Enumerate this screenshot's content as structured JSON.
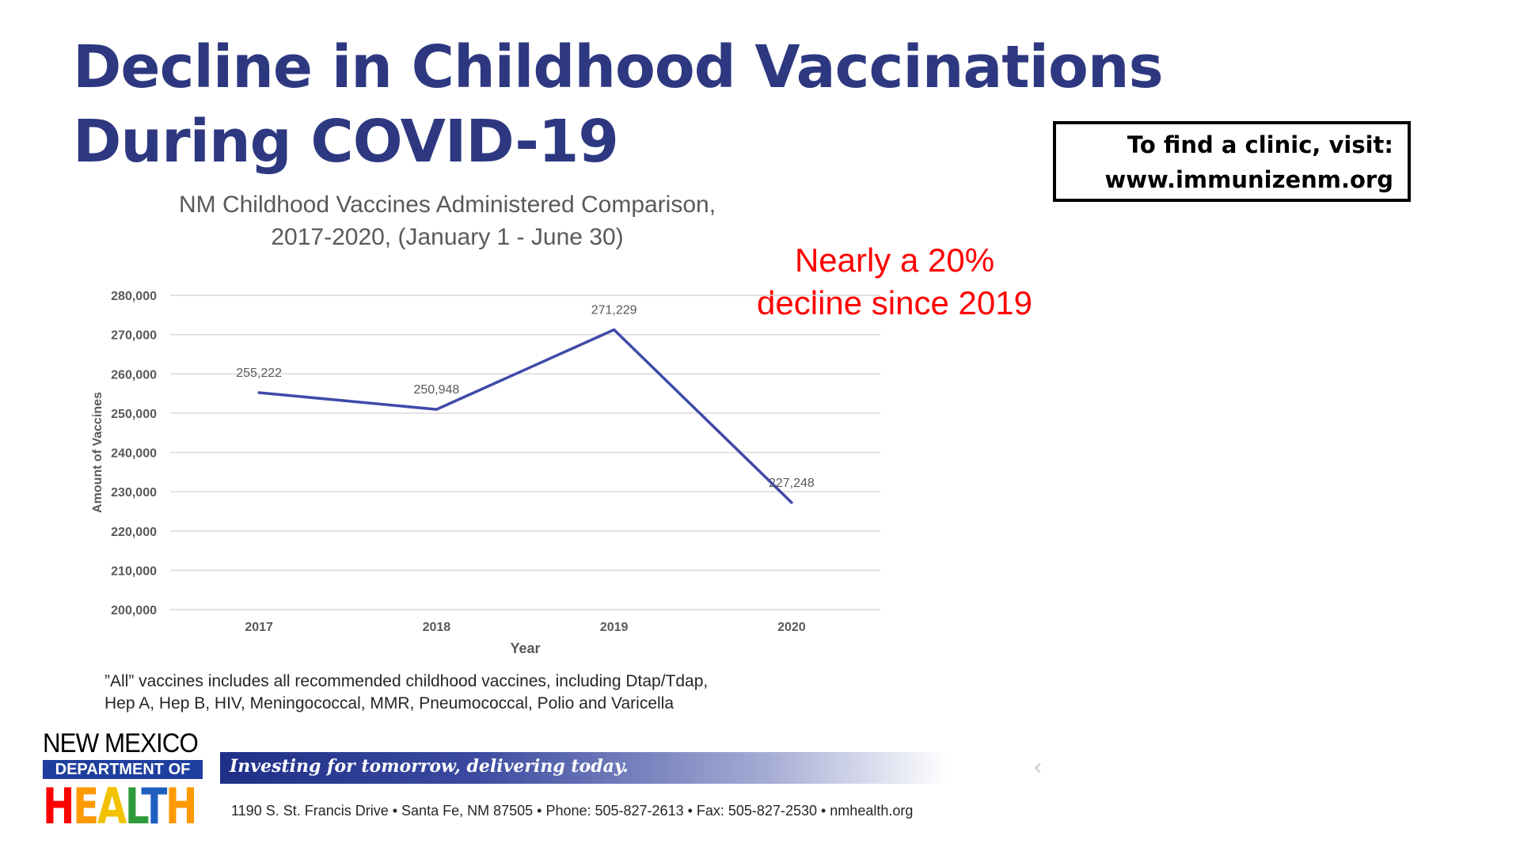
{
  "slide": {
    "title_line1": "Decline in Childhood Vaccinations",
    "title_line2": "During COVID-19",
    "clinic_line1": "To find a clinic, visit:",
    "clinic_line2": "www.immunizenm.org",
    "annotation_line1": "Nearly a 20%",
    "annotation_line2": "decline since 2019",
    "footnote_line1": "”All” vaccines includes all recommended childhood vaccines, including Dtap/Tdap,",
    "footnote_line2": "Hep A, Hep B, HIV,  Meningococcal, MMR, Pneumococcal, Polio and Varicella"
  },
  "logo": {
    "line1": "NEW MEXICO",
    "line2": "DEPARTMENT OF",
    "line3": "HEALTH",
    "health_colors": [
      "#ff0000",
      "#ff9900",
      "#f2c200",
      "#2e9b3a",
      "#1f5fbf",
      "#ff9900"
    ]
  },
  "footer": {
    "tagline": "Investing for tomorrow, delivering today.",
    "address": "1190 S. St. Francis Drive  •  Santa Fe, NM 87505  •  Phone: 505-827-2613  •  Fax: 505-827-2530  •  nmhealth.org"
  },
  "chart_data": {
    "type": "line",
    "title_line1": "NM Childhood Vaccines Administered Comparison,",
    "title_line2": "2017-2020, (January 1 - June 30)",
    "xlabel": "Year",
    "ylabel": "Amount of Vaccines",
    "categories": [
      "2017",
      "2018",
      "2019",
      "2020"
    ],
    "values": [
      255222,
      250948,
      271229,
      227248
    ],
    "data_labels": [
      "255,222",
      "250,948",
      "271,229",
      "227,248"
    ],
    "ylim": [
      200000,
      280000
    ],
    "yticks": [
      200000,
      210000,
      220000,
      230000,
      240000,
      250000,
      260000,
      270000,
      280000
    ],
    "ytick_labels": [
      "200,000",
      "210,000",
      "220,000",
      "230,000",
      "240,000",
      "250,000",
      "260,000",
      "270,000",
      "280,000"
    ],
    "grid": true,
    "line_color": "#3f4aa8",
    "legend": "none"
  }
}
